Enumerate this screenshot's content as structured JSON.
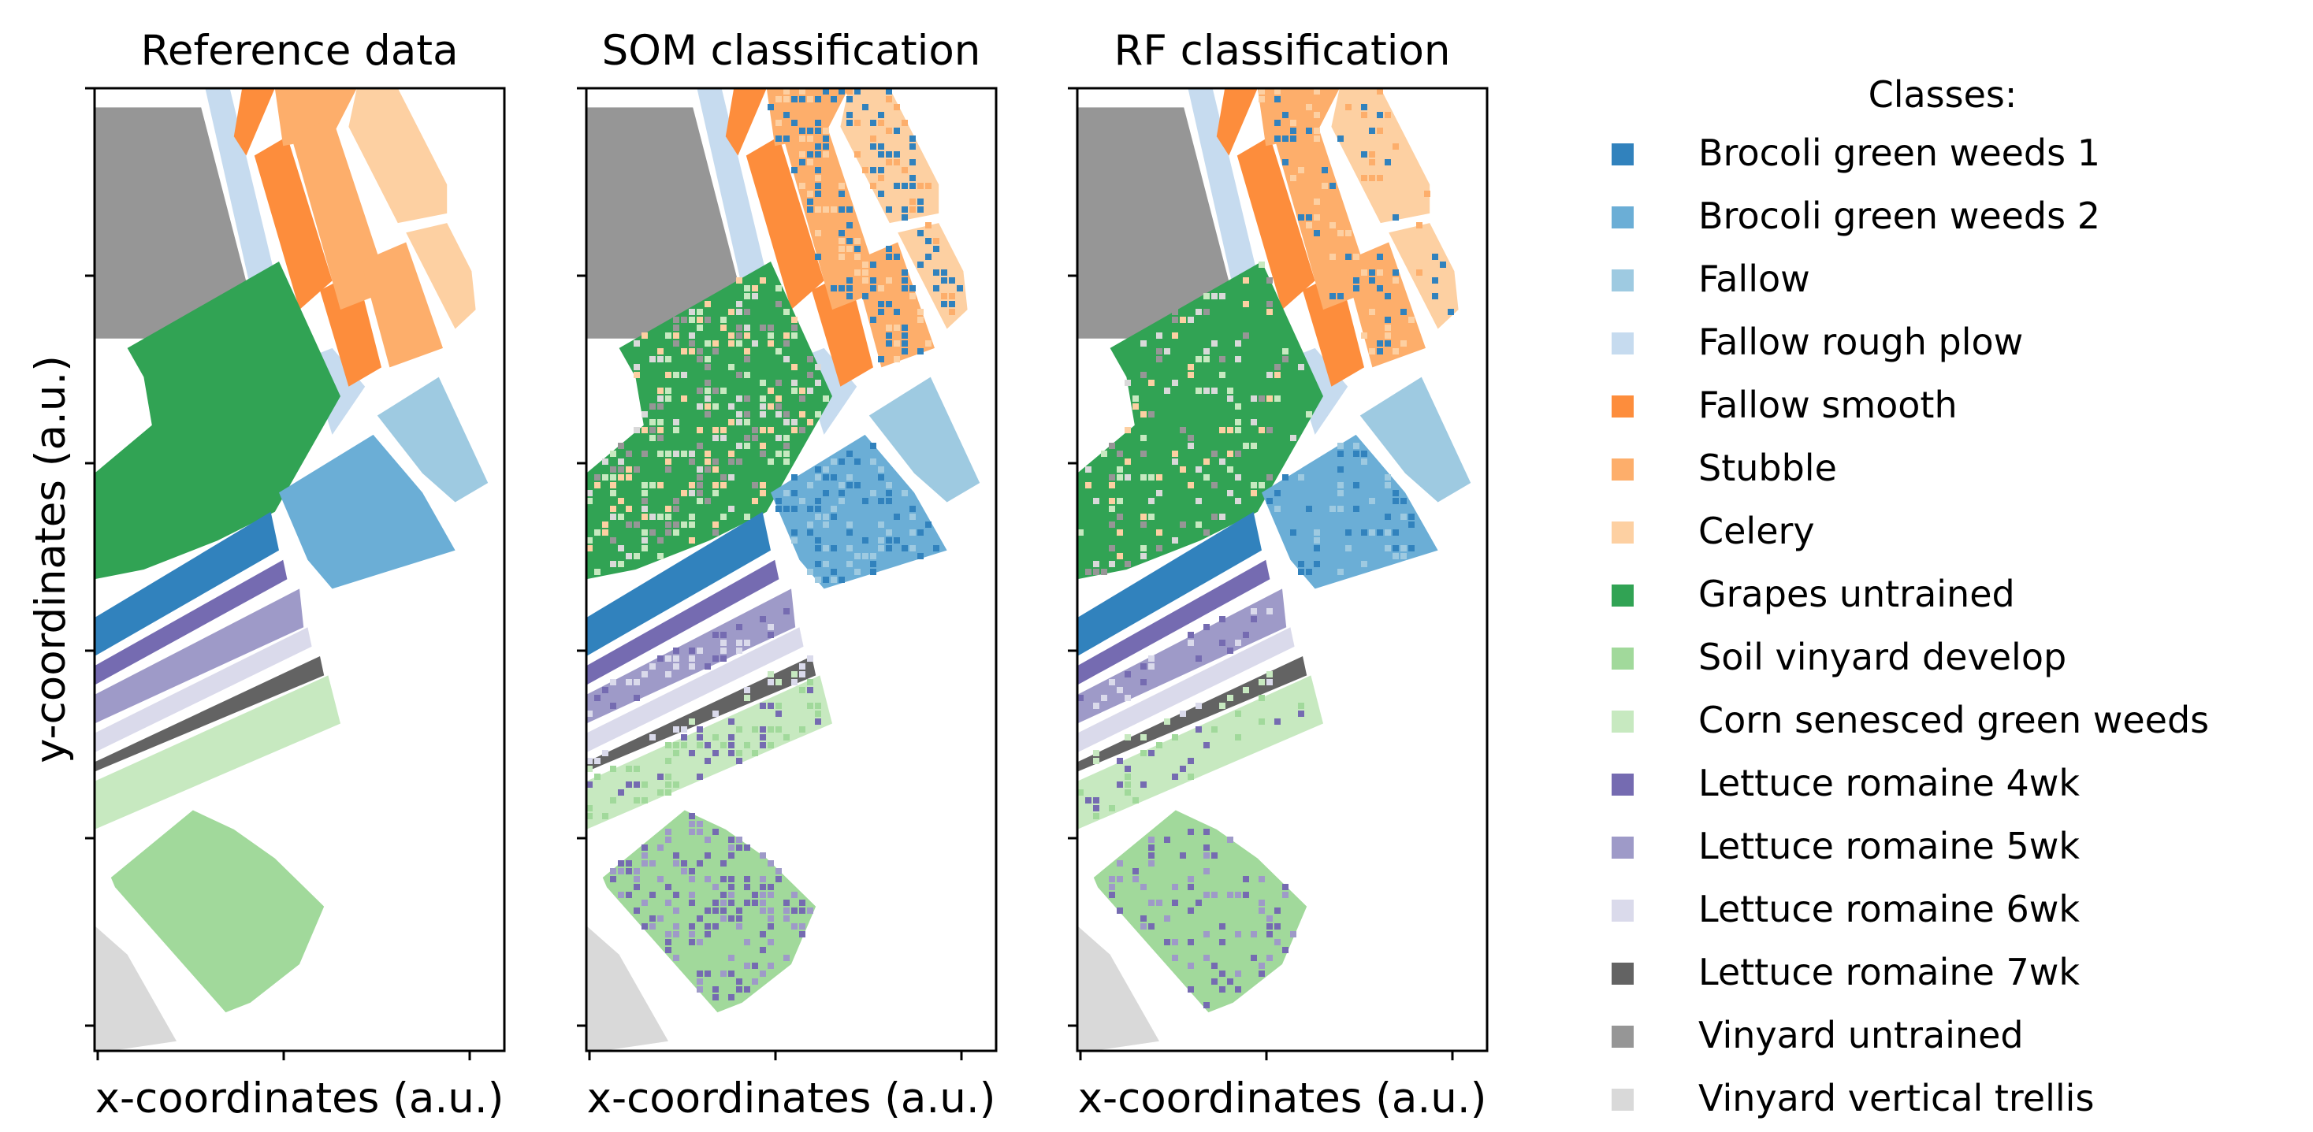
{
  "chart_data": {
    "type": "heatmap",
    "description_axes": {
      "ylabel": "y-coordinates (a.u.)",
      "xlabel": "x-coordinates (a.u.)"
    },
    "panels": [
      {
        "title": "Reference data",
        "xlabel": "x-coordinates (a.u.)"
      },
      {
        "title": "SOM classification",
        "xlabel": "x-coordinates (a.u.)"
      },
      {
        "title": "RF classification",
        "xlabel": "x-coordinates (a.u.)"
      }
    ],
    "x_ticks": 3,
    "y_ticks": 6,
    "legend": {
      "title": "Classes:",
      "entries": [
        {
          "label": "Brocoli green weeds 1",
          "color": "#3182bd"
        },
        {
          "label": "Brocoli green weeds 2",
          "color": "#6baed6"
        },
        {
          "label": "Fallow",
          "color": "#9ecae1"
        },
        {
          "label": "Fallow rough plow",
          "color": "#c6dbef"
        },
        {
          "label": "Fallow smooth",
          "color": "#fd8d3c"
        },
        {
          "label": "Stubble",
          "color": "#fdae6b"
        },
        {
          "label": "Celery",
          "color": "#fdd0a2"
        },
        {
          "label": "Grapes untrained",
          "color": "#31a354"
        },
        {
          "label": "Soil vinyard develop",
          "color": "#a1d99b"
        },
        {
          "label": "Corn senesced green weeds",
          "color": "#c7e9c0"
        },
        {
          "label": "Lettuce romaine 4wk",
          "color": "#756bb1"
        },
        {
          "label": "Lettuce romaine 5wk",
          "color": "#9e9ac8"
        },
        {
          "label": "Lettuce romaine 6wk",
          "color": "#dadaeb"
        },
        {
          "label": "Lettuce romaine 7wk",
          "color": "#636363"
        },
        {
          "label": "Vinyard untrained",
          "color": "#969696"
        },
        {
          "label": "Vinyard vertical trellis",
          "color": "#d9d9d9"
        }
      ]
    }
  }
}
